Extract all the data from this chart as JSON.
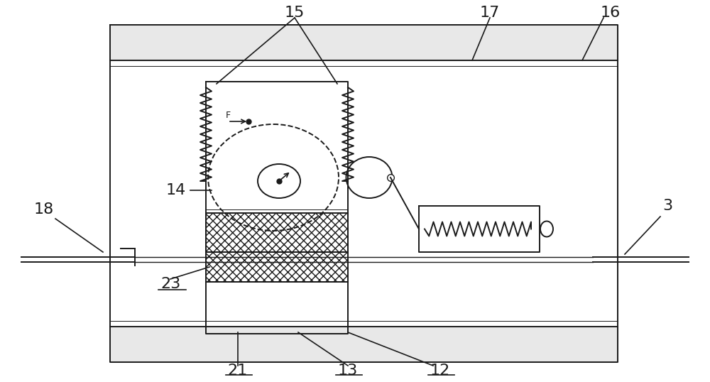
{
  "fig_width": 10.0,
  "fig_height": 5.38,
  "dpi": 100,
  "bg_color": "#ffffff",
  "line_color": "#1a1a1a",
  "label_color": "#1a1a1a",
  "lw": 1.4
}
